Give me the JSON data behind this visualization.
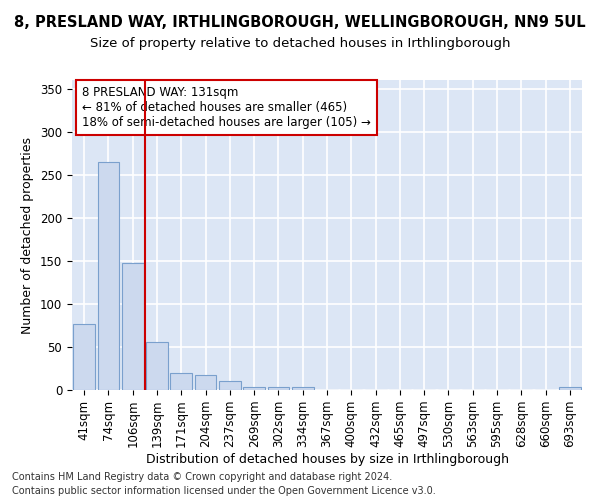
{
  "title_line1": "8, PRESLAND WAY, IRTHLINGBOROUGH, WELLINGBOROUGH, NN9 5UL",
  "title_line2": "Size of property relative to detached houses in Irthlingborough",
  "xlabel": "Distribution of detached houses by size in Irthlingborough",
  "ylabel": "Number of detached properties",
  "categories": [
    "41sqm",
    "74sqm",
    "106sqm",
    "139sqm",
    "171sqm",
    "204sqm",
    "237sqm",
    "269sqm",
    "302sqm",
    "334sqm",
    "367sqm",
    "400sqm",
    "432sqm",
    "465sqm",
    "497sqm",
    "530sqm",
    "563sqm",
    "595sqm",
    "628sqm",
    "660sqm",
    "693sqm"
  ],
  "values": [
    77,
    265,
    147,
    56,
    20,
    18,
    10,
    4,
    4,
    4,
    0,
    0,
    0,
    0,
    0,
    0,
    0,
    0,
    0,
    0,
    3
  ],
  "bar_color": "#ccd9ee",
  "bar_edge_color": "#7aa0cd",
  "vline_x": 3,
  "vline_color": "#cc0000",
  "annotation_text": "8 PRESLAND WAY: 131sqm\n← 81% of detached houses are smaller (465)\n18% of semi-detached houses are larger (105) →",
  "annotation_box_color": "#ffffff",
  "annotation_box_edge": "#cc0000",
  "footer_line1": "Contains HM Land Registry data © Crown copyright and database right 2024.",
  "footer_line2": "Contains public sector information licensed under the Open Government Licence v3.0.",
  "ylim": [
    0,
    360
  ],
  "yticks": [
    0,
    50,
    100,
    150,
    200,
    250,
    300,
    350
  ],
  "bg_color": "#dce6f5",
  "grid_color": "#ffffff",
  "title_fontsize": 10.5,
  "subtitle_fontsize": 9.5,
  "axis_label_fontsize": 9,
  "tick_fontsize": 8.5,
  "footer_fontsize": 7
}
